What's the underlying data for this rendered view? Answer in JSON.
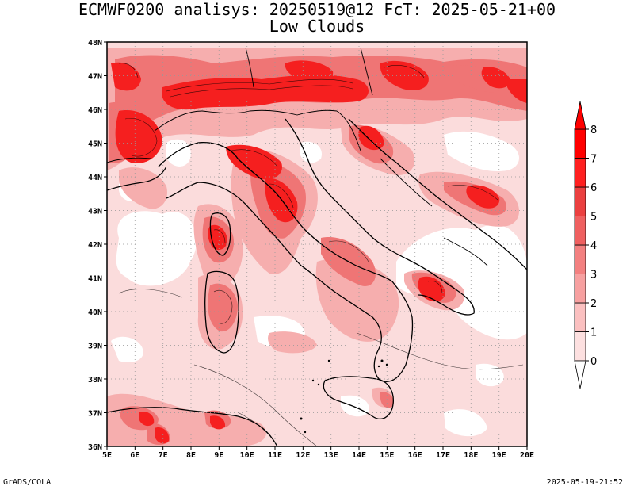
{
  "header": {
    "title_line1": "ECMWF0200 analisys: 20250519@12 FcT: 2025-05-21+00",
    "title_line2": "Low Clouds"
  },
  "footer": {
    "left": "GrADS/COLA",
    "right": "2025-05-19-21:52"
  },
  "map": {
    "lon_labels": [
      "5E",
      "6E",
      "7E",
      "8E",
      "9E",
      "10E",
      "11E",
      "12E",
      "13E",
      "14E",
      "15E",
      "16E",
      "17E",
      "18E",
      "19E",
      "20E"
    ],
    "lat_labels": [
      "48N",
      "47N",
      "46N",
      "45N",
      "44N",
      "43N",
      "42N",
      "41N",
      "40N",
      "39N",
      "38N",
      "37N",
      "36N"
    ],
    "lon_range": [
      5,
      20
    ],
    "lat_range": [
      36,
      48
    ],
    "grid": "dotted"
  },
  "colorbar": {
    "levels": [
      "0",
      "1",
      "2",
      "3",
      "4",
      "5",
      "6",
      "7",
      "8"
    ],
    "colors": [
      "#ffffff",
      "#fde0e0",
      "#fbc0c0",
      "#f7a0a0",
      "#f38080",
      "#ef6060",
      "#eb4040",
      "#ff2020",
      "#ff0000"
    ]
  },
  "cloud_palette": {
    "light": "#fbdcdc",
    "medium": "#f6aeae",
    "strong": "#ef7575",
    "intense": "#f51f1f"
  }
}
